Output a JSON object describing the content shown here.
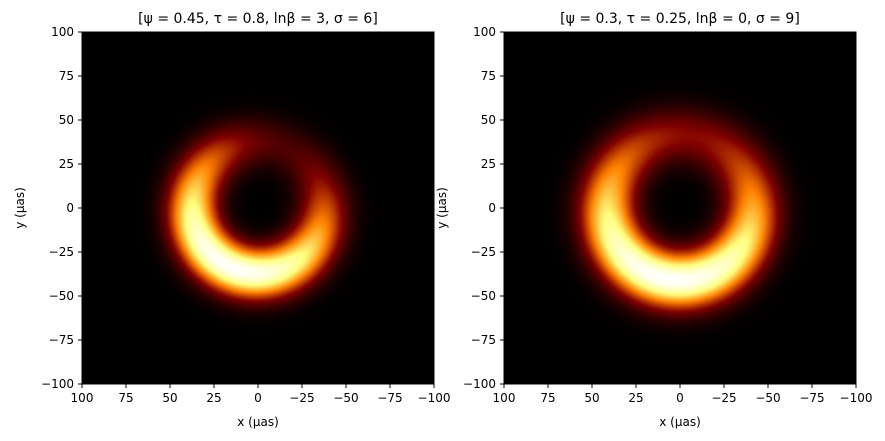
{
  "chart_data": [
    {
      "type": "heatmap",
      "title": "[ψ = 0.45, τ = 0.8, lnβ = 3, σ = 6]",
      "xlabel": "x (μas)",
      "ylabel": "y (μas)",
      "xlim": [
        100,
        -100
      ],
      "ylim": [
        -100,
        100
      ],
      "xticks": [
        100,
        75,
        50,
        25,
        0,
        -25,
        -50,
        -75,
        -100
      ],
      "yticks": [
        100,
        75,
        50,
        25,
        0,
        -25,
        -50,
        -75,
        -100
      ],
      "xtick_labels": [
        "100",
        "75",
        "50",
        "25",
        "0",
        "−25",
        "−50",
        "−75",
        "−100"
      ],
      "ytick_labels": [
        "100",
        "75",
        "50",
        "25",
        "0",
        "−25",
        "−50",
        "−75",
        "−100"
      ],
      "colormap": "afmhot",
      "ring": {
        "center_x": 0,
        "center_y": 0,
        "radius": 37,
        "width_sigma": 9,
        "brightness_asymmetry": 0.8,
        "bright_side_angle_deg": -65
      },
      "grid": false
    },
    {
      "type": "heatmap",
      "title": "[ψ = 0.3, τ = 0.25, lnβ = 0, σ = 9]",
      "xlabel": "x (μas)",
      "ylabel": "y (μas)",
      "xlim": [
        100,
        -100
      ],
      "ylim": [
        -100,
        100
      ],
      "xticks": [
        100,
        75,
        50,
        25,
        0,
        -25,
        -50,
        -75,
        -100
      ],
      "yticks": [
        100,
        75,
        50,
        25,
        0,
        -25,
        -50,
        -75,
        -100
      ],
      "xtick_labels": [
        "100",
        "75",
        "50",
        "25",
        "0",
        "−25",
        "−50",
        "−75",
        "−100"
      ],
      "ytick_labels": [
        "100",
        "75",
        "50",
        "25",
        "0",
        "−25",
        "−50",
        "−75",
        "−100"
      ],
      "colormap": "afmhot",
      "ring": {
        "center_x": 0,
        "center_y": 0,
        "radius": 41,
        "width_sigma": 10,
        "brightness_asymmetry": 0.65,
        "bright_side_angle_deg": -80
      },
      "grid": false
    }
  ]
}
